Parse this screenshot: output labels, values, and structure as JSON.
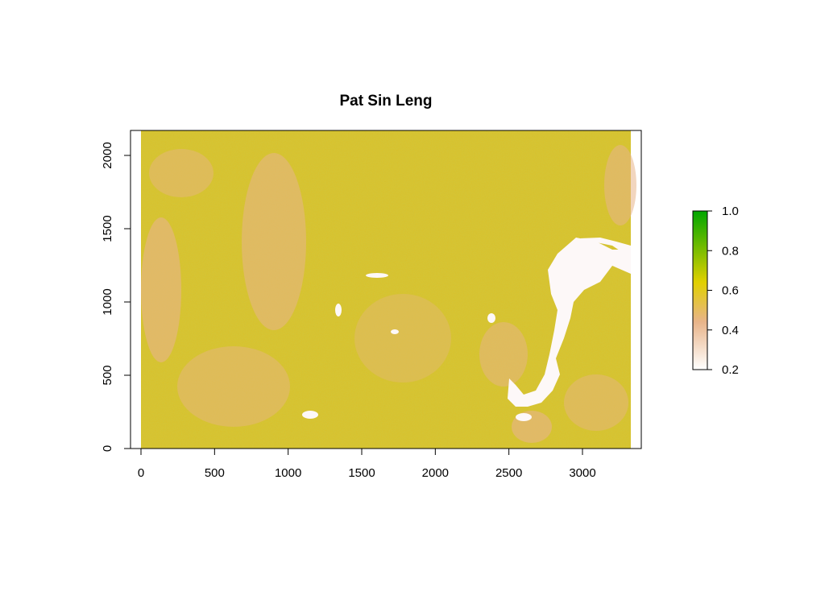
{
  "chart_data": {
    "type": "heatmap",
    "title": "Pat Sin Leng",
    "xlabel": "",
    "ylabel": "",
    "x_ticks": [
      0,
      500,
      1000,
      1500,
      2000,
      2500,
      3000
    ],
    "y_ticks": [
      0,
      500,
      1000,
      1500,
      2000
    ],
    "xlim": [
      -70,
      3340
    ],
    "ylim": [
      0,
      2170
    ],
    "raster_extent": {
      "x": [
        0,
        3330
      ],
      "y": [
        0,
        2170
      ]
    },
    "legend": {
      "position": "right",
      "min": 0.2,
      "max": 1.0,
      "ticks": [
        0.2,
        0.4,
        0.6,
        0.8,
        1.0
      ],
      "tick_labels": [
        "0.2",
        "0.4",
        "0.6",
        "0.8",
        "1.0"
      ]
    },
    "colors": {
      "low": "#ffffff",
      "mid_low": "#e8b48a",
      "mid": "#e1d000",
      "high": "#00a600"
    }
  }
}
